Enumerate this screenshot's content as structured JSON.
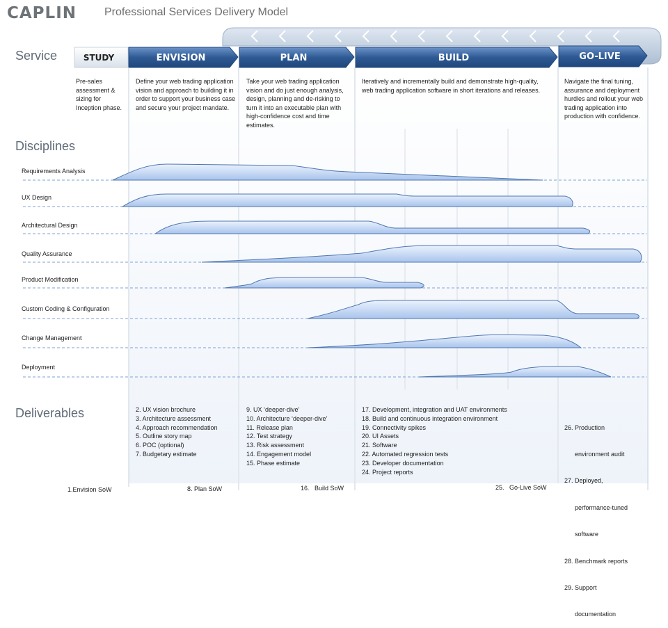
{
  "header": {
    "logo": "CAPLIN",
    "title": "Professional Services Delivery Model"
  },
  "sections": {
    "service": "Service",
    "disciplines": "Disciplines",
    "deliverables": "Deliverables"
  },
  "phases": {
    "study": {
      "label": "STUDY",
      "description": "Pre-sales assessment & sizing for Inception phase."
    },
    "envision": {
      "label": "ENVISION",
      "description": "Define your web trading application vision and approach to building it in order to support your business case and secure your project mandate."
    },
    "plan": {
      "label": "PLAN",
      "description": "Take your web trading application vision and do just enough analysis, design, planning and de-risking to turn it into an executable plan with high-confidence cost and time estimates."
    },
    "build": {
      "label": "BUILD",
      "description": "Iteratively and incrementally build and demonstrate high-quality, web trading application software in short iterations and releases."
    },
    "golive": {
      "label": "GO-LIVE",
      "description": "Navigate the final tuning, assurance and deployment hurdles and rollout your web trading application into production with confidence."
    }
  },
  "disciplines": [
    "Requirements Analysis",
    "UX Design",
    "Architectural Design",
    "Quality Assurance",
    "Product Modification",
    "Custom Coding & Configuration",
    "Change Management",
    "Deployment"
  ],
  "deliverables": {
    "envision": [
      "2.  UX vision brochure",
      "3.  Architecture assessment",
      "4.  Approach recommendation",
      "5.  Outline story map",
      "6.  POC (optional)",
      "7.  Budgetary estimate"
    ],
    "plan": [
      "9.    UX ‘deeper-dive’",
      "10.  Architecture ‘deeper-dive’",
      "11.  Release plan",
      "12.  Test strategy",
      "13.  Risk assessment",
      "14.  Engagement model",
      "15.  Phase estimate"
    ],
    "build": [
      "17.  Development, integration and UAT environments",
      "18.  Build and continuous integration environment",
      "19.  Connectivity spikes",
      "20.  UI Assets",
      "21.  Software",
      "22.  Automated regression tests",
      "23.  Developer documentation",
      "24.  Project reports"
    ],
    "golive": [
      "26. Production",
      "      environment audit",
      "27. Deployed,",
      "      performance-tuned",
      "      software",
      "28. Benchmark reports",
      "29. Support",
      "      documentation"
    ]
  },
  "sows": {
    "envision": "1.Envision SoW",
    "plan": "8. Plan SoW",
    "build": "16.   Build SoW",
    "golive": "25.   Go-Live SoW"
  },
  "colors": {
    "chevron_dark": "#2f5a94",
    "chevron_light": "#5f86bd",
    "band_fill": "#c9dbf4",
    "band_stroke": "#4f76b0",
    "dashed_line": "#7da2d6",
    "section_text": "#5f6b78"
  }
}
